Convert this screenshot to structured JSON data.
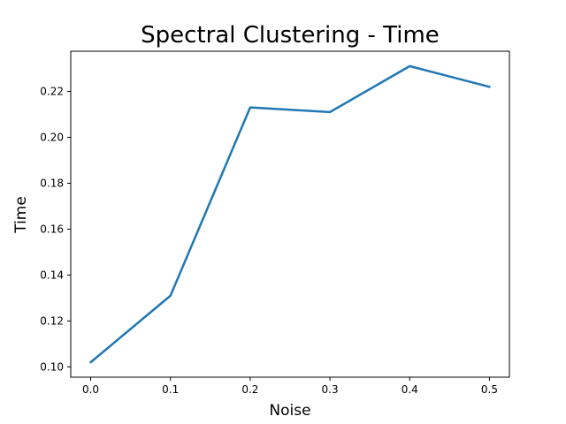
{
  "chart_data": {
    "type": "line",
    "title": "Spectral Clustering - Time",
    "xlabel": "Noise",
    "ylabel": "Time",
    "x": [
      0.0,
      0.1,
      0.2,
      0.3,
      0.4,
      0.5
    ],
    "series": [
      {
        "values": [
          0.102,
          0.131,
          0.213,
          0.211,
          0.231,
          0.222
        ],
        "color": "#1f77b4"
      }
    ],
    "xlim": [
      -0.025,
      0.525
    ],
    "ylim": [
      0.0955,
      0.2375
    ],
    "xticks": [
      "0.0",
      "0.1",
      "0.2",
      "0.3",
      "0.4",
      "0.5"
    ],
    "yticks": [
      "0.10",
      "0.12",
      "0.14",
      "0.16",
      "0.18",
      "0.20",
      "0.22"
    ],
    "grid": false,
    "legend": "none"
  }
}
